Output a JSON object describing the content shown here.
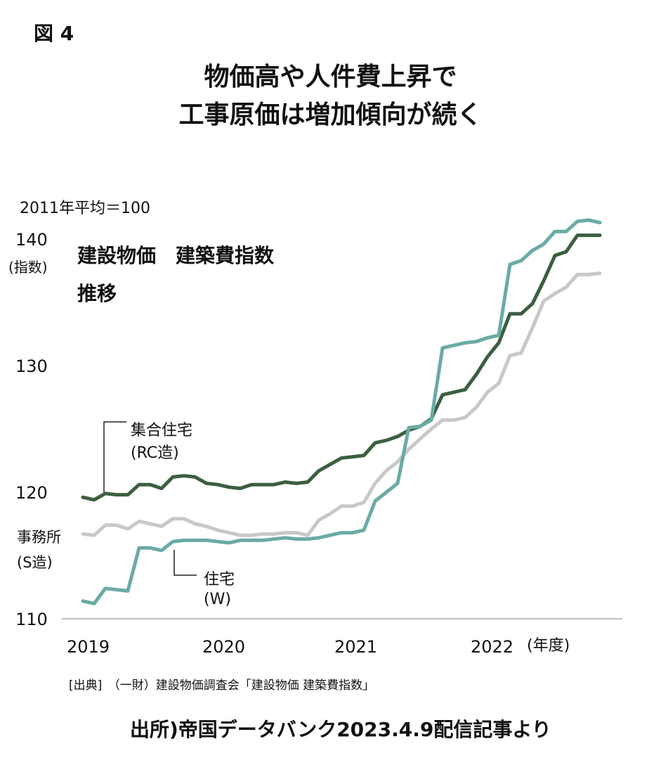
{
  "figure_label": "図 4",
  "title_lines": [
    "物価高や人件費上昇で",
    "工事原価は増加傾向が続く"
  ],
  "base_note": "2011年平均＝100",
  "source": "[出典]　（一財）建設物価調査会「建設物価 建築費指数」",
  "credit": "出所)帝国データバンク2023.4.9配信記事より",
  "chart_data": {
    "type": "line",
    "title": "建設物価　建築費指数",
    "subtitle": "推移",
    "ylabel": "(指数)",
    "xlabel": "(年度)",
    "ylim": [
      110,
      142
    ],
    "yticks": [
      110,
      120,
      130,
      140
    ],
    "xticks": [
      "2019",
      "2020",
      "2021",
      "2022"
    ],
    "x_note": "monthly points, FY2019 Apr – FY2022 Feb",
    "grid": false,
    "series": [
      {
        "name": "集合住宅",
        "name2": "(RC造)",
        "color": "#3d5e41",
        "values": [
          119.6,
          119.4,
          119.9,
          119.8,
          119.8,
          120.6,
          120.6,
          120.3,
          121.2,
          121.3,
          121.2,
          120.7,
          120.6,
          120.4,
          120.3,
          120.6,
          120.6,
          120.6,
          120.8,
          120.7,
          120.8,
          121.7,
          122.2,
          122.7,
          122.8,
          122.9,
          123.9,
          124.1,
          124.4,
          124.9,
          125.2,
          125.8,
          127.7,
          127.9,
          128.1,
          129.3,
          130.7,
          131.8,
          134.1,
          134.1,
          134.9,
          136.7,
          138.7,
          139.0,
          140.3,
          140.3,
          140.3
        ]
      },
      {
        "name": "事務所",
        "name2": "(S造)",
        "color": "#c8c8c8",
        "values": [
          116.7,
          116.6,
          117.4,
          117.4,
          117.1,
          117.7,
          117.5,
          117.3,
          117.9,
          117.9,
          117.5,
          117.3,
          117.0,
          116.8,
          116.6,
          116.6,
          116.7,
          116.7,
          116.8,
          116.8,
          116.6,
          117.8,
          118.3,
          118.9,
          118.9,
          119.2,
          120.7,
          121.7,
          122.4,
          123.4,
          124.2,
          125.0,
          125.7,
          125.7,
          125.9,
          126.7,
          127.9,
          128.6,
          130.8,
          131.0,
          133.0,
          135.1,
          135.7,
          136.2,
          137.2,
          137.2,
          137.3
        ]
      },
      {
        "name": "住宅",
        "name2": "(W)",
        "color": "#6aaba5",
        "values": [
          111.4,
          111.2,
          112.4,
          112.3,
          112.2,
          115.6,
          115.6,
          115.4,
          116.1,
          116.2,
          116.2,
          116.2,
          116.1,
          116.0,
          116.2,
          116.2,
          116.2,
          116.3,
          116.4,
          116.3,
          116.3,
          116.4,
          116.6,
          116.8,
          116.8,
          117.0,
          119.3,
          120.0,
          120.7,
          125.1,
          125.2,
          125.7,
          131.4,
          131.6,
          131.8,
          131.9,
          132.2,
          132.4,
          138.0,
          138.3,
          139.1,
          139.6,
          140.6,
          140.6,
          141.4,
          141.5,
          141.3
        ]
      }
    ]
  }
}
